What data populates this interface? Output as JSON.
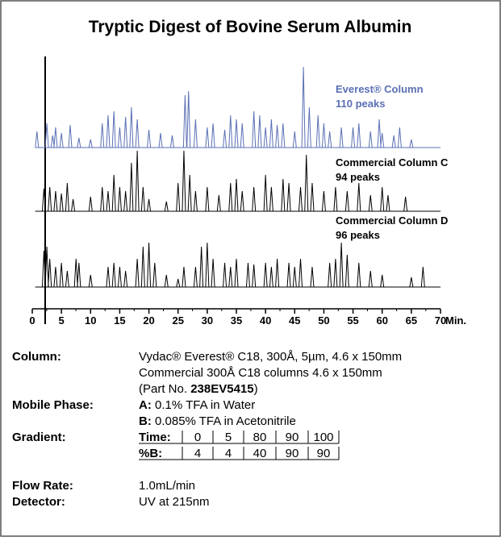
{
  "chart_data": {
    "type": "chromatogram",
    "title": "Tryptic Digest of Bovine Serum Albumin",
    "x_unit": "Min.",
    "xlim": [
      0,
      70
    ],
    "xticks": [
      0,
      5,
      10,
      15,
      20,
      25,
      30,
      35,
      40,
      45,
      50,
      55,
      60,
      65,
      70
    ],
    "series": [
      {
        "name": "Everest® Column",
        "note": "110 peaks",
        "color": "#5a6fb5",
        "x": [
          0.8,
          2.5,
          3.5,
          4,
          5,
          6.5,
          8,
          10,
          12,
          13,
          14,
          15,
          16,
          17,
          18,
          20,
          22,
          24,
          26.2,
          26.8,
          28,
          30,
          31,
          33,
          34,
          35,
          36,
          38,
          39,
          40,
          41,
          42,
          43,
          45,
          46.5,
          47.5,
          49,
          50,
          51,
          53,
          55,
          56,
          58,
          59.5,
          60,
          62,
          63,
          65
        ],
        "values": [
          20,
          30,
          15,
          25,
          18,
          28,
          12,
          10,
          30,
          40,
          45,
          25,
          38,
          50,
          35,
          22,
          18,
          15,
          65,
          70,
          35,
          25,
          30,
          22,
          40,
          35,
          30,
          45,
          40,
          25,
          35,
          28,
          30,
          20,
          100,
          50,
          40,
          30,
          20,
          25,
          25,
          30,
          20,
          35,
          18,
          15,
          25,
          10
        ]
      },
      {
        "name": "Commercial Column C",
        "note": "94 peaks",
        "color": "#000000",
        "x": [
          2,
          3,
          4,
          5,
          6,
          7,
          10,
          12,
          13,
          14,
          15,
          16,
          17,
          18,
          19,
          20,
          23,
          25,
          26,
          27,
          28,
          30,
          32,
          34,
          35,
          36,
          38,
          40,
          41,
          43,
          44,
          46,
          47,
          48,
          50,
          52,
          54,
          56,
          58,
          60,
          61,
          64
        ],
        "values": [
          28,
          30,
          25,
          22,
          35,
          15,
          18,
          30,
          25,
          45,
          30,
          25,
          60,
          75,
          30,
          15,
          12,
          35,
          75,
          45,
          25,
          30,
          20,
          35,
          40,
          25,
          30,
          45,
          30,
          40,
          35,
          30,
          70,
          35,
          25,
          30,
          25,
          35,
          20,
          30,
          20,
          18
        ]
      },
      {
        "name": "Commercial Column D",
        "note": "96 peaks",
        "color": "#000000",
        "x": [
          2,
          2.5,
          3,
          4,
          5,
          6,
          7.5,
          8,
          10,
          13,
          14,
          15,
          16,
          18,
          19,
          20,
          21,
          23,
          25,
          26,
          28,
          29,
          30,
          31,
          33,
          34,
          35,
          37,
          38,
          40,
          41,
          42,
          44,
          45,
          46,
          48,
          51,
          52,
          53,
          54,
          56,
          58,
          60,
          65,
          67
        ],
        "values": [
          45,
          50,
          35,
          25,
          30,
          20,
          35,
          30,
          15,
          25,
          30,
          25,
          20,
          35,
          50,
          55,
          30,
          15,
          10,
          25,
          25,
          50,
          55,
          35,
          30,
          25,
          35,
          30,
          28,
          30,
          25,
          35,
          30,
          25,
          35,
          25,
          30,
          35,
          55,
          40,
          30,
          20,
          15,
          12,
          25
        ]
      }
    ]
  },
  "details": {
    "column": {
      "label": "Column:",
      "line1": "Vydac® Everest® C18, 300Å, 5µm, 4.6 x 150mm",
      "line2": "Commercial 300Å C18 columns 4.6 x 150mm",
      "line3_pre": "(Part No. ",
      "line3_bold": "238EV5415",
      "line3_post": ")"
    },
    "mobile_phase": {
      "label": "Mobile Phase:",
      "a_key": "A:",
      "a_text": " 0.1% TFA in Water",
      "b_key": "B:",
      "b_text": " 0.085% TFA in Acetonitrile"
    },
    "gradient": {
      "label": "Gradient:",
      "rows": [
        [
          "Time:",
          0,
          5,
          80,
          90,
          100
        ],
        [
          "%B:",
          4,
          4,
          40,
          90,
          90
        ]
      ]
    },
    "flow_rate": {
      "label": "Flow Rate:",
      "value": "1.0mL/min"
    },
    "detector": {
      "label": "Detector:",
      "value": "UV at 215nm"
    }
  }
}
